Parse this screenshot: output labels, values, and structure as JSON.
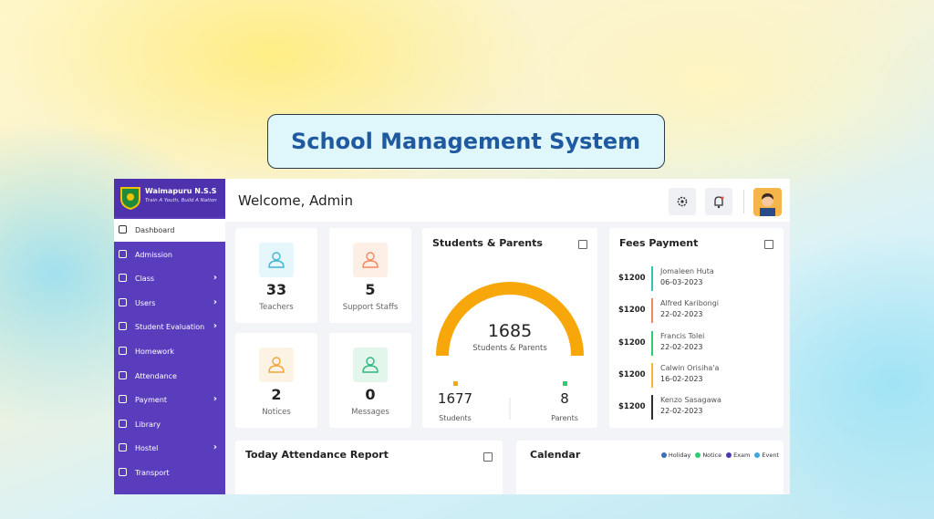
{
  "banner": {
    "title": "School Management System"
  },
  "sidebar": {
    "school_name": "Waimapuru N.S.S",
    "motto": "Train A Youth, Build A Nation",
    "menu": [
      {
        "label": "Dashboard",
        "active": true,
        "submenu": false
      },
      {
        "label": "Admission",
        "active": false,
        "submenu": false
      },
      {
        "label": "Class",
        "active": false,
        "submenu": true
      },
      {
        "label": "Users",
        "active": false,
        "submenu": true
      },
      {
        "label": "Student Evaluation",
        "active": false,
        "submenu": true
      },
      {
        "label": "Homework",
        "active": false,
        "submenu": false
      },
      {
        "label": "Attendance",
        "active": false,
        "submenu": false
      },
      {
        "label": "Payment",
        "active": false,
        "submenu": true
      },
      {
        "label": "Library",
        "active": false,
        "submenu": false
      },
      {
        "label": "Hostel",
        "active": false,
        "submenu": true
      },
      {
        "label": "Transport",
        "active": false,
        "submenu": false
      }
    ]
  },
  "header": {
    "greeting": "Welcome, Admin"
  },
  "stats": [
    {
      "value": "33",
      "label": "Teachers",
      "color": "#3bb7d6",
      "background": "#e6f7fb"
    },
    {
      "value": "5",
      "label": "Support Staffs",
      "color": "#f08a5d",
      "background": "#fdeee6"
    },
    {
      "value": "2",
      "label": "Notices",
      "color": "#f2a33a",
      "background": "#fdf3e4"
    },
    {
      "value": "0",
      "label": "Messages",
      "color": "#2fb67c",
      "background": "#e3f6ec"
    }
  ],
  "students_parents": {
    "title": "Students & Parents",
    "total": "1685",
    "total_label": "Students & Parents",
    "gauge_color": "#f7a70a",
    "items": [
      {
        "value": "1677",
        "label": "Students",
        "color": "#f7a70a"
      },
      {
        "value": "8",
        "label": "Parents",
        "color": "#2ecc71"
      }
    ]
  },
  "fees_payment": {
    "title": "Fees Payment",
    "entries": [
      {
        "amount": "$1200",
        "name": "Jomaleen Huta",
        "date": "06-03-2023",
        "color": "#2ec4b6"
      },
      {
        "amount": "$1200",
        "name": "Alfred Karibongi",
        "date": "22-02-2023",
        "color": "#f08a5d"
      },
      {
        "amount": "$1200",
        "name": "Francis Tolei",
        "date": "22-02-2023",
        "color": "#2ecc71"
      },
      {
        "amount": "$1200",
        "name": "Calwin Orisiha'a",
        "date": "16-02-2023",
        "color": "#f7b731"
      },
      {
        "amount": "$1200",
        "name": "Kenzo Sasagawa",
        "date": "22-02-2023",
        "color": "#2d2d3a"
      }
    ]
  },
  "attendance": {
    "title": "Today Attendance Report"
  },
  "calendar": {
    "title": "Calendar",
    "legend": [
      {
        "label": "Holiday",
        "color": "#3d6fb4"
      },
      {
        "label": "Notice",
        "color": "#2ecc71"
      },
      {
        "label": "Exam",
        "color": "#4b3ba8"
      },
      {
        "label": "Event",
        "color": "#3fa9e0"
      }
    ]
  }
}
